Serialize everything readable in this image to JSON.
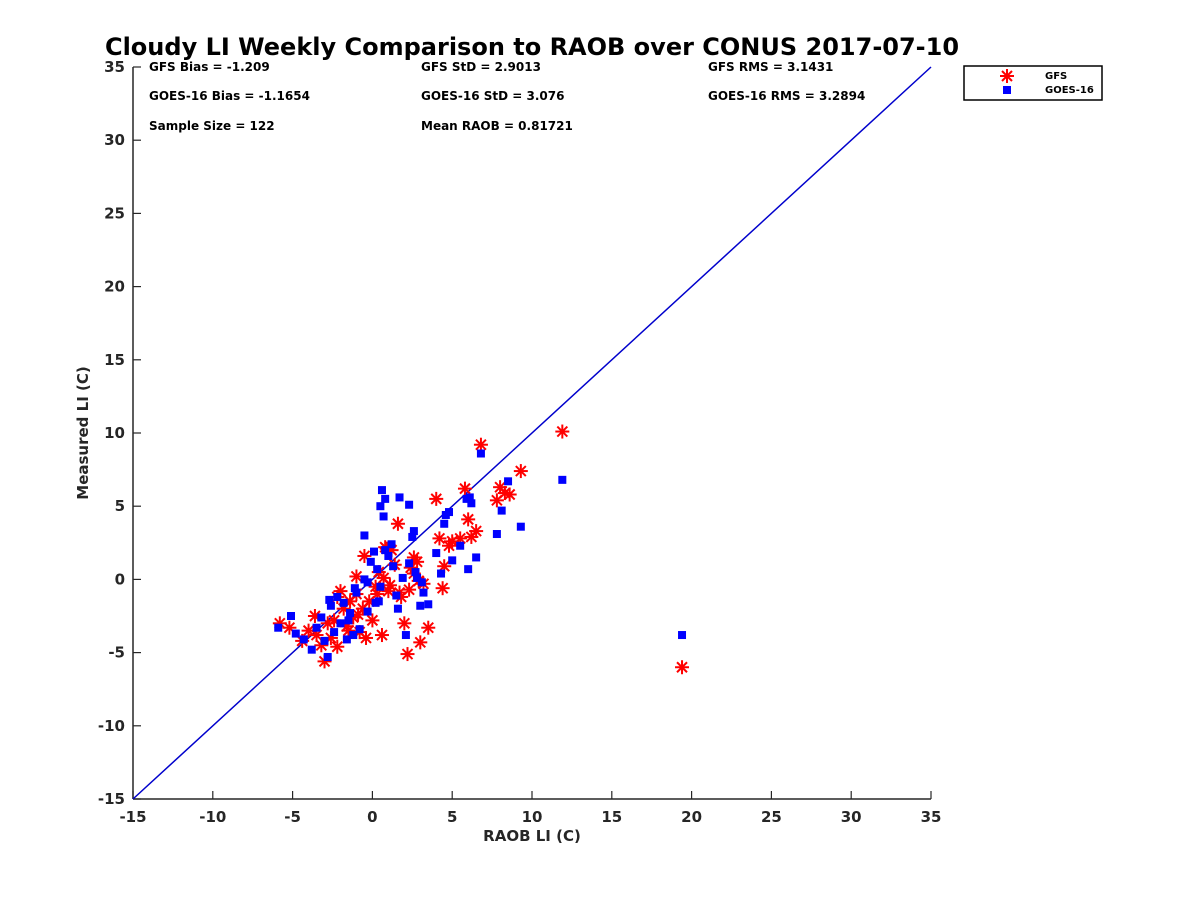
{
  "chart_data": {
    "type": "scatter",
    "title": "Cloudy LI Weekly Comparison to RAOB over CONUS 2017-07-10",
    "xlabel": "RAOB LI (C)",
    "ylabel": "Measured LI (C)",
    "xlim": [
      -15,
      35
    ],
    "ylim": [
      -15,
      35
    ],
    "xticks": [
      "-15",
      "-10",
      "-5",
      "0",
      "5",
      "10",
      "15",
      "20",
      "25",
      "30",
      "35"
    ],
    "yticks": [
      "35",
      "30",
      "25",
      "20",
      "15",
      "10",
      "5",
      "0",
      "-5",
      "-10",
      "-15"
    ],
    "grid": false,
    "legend_position": "outside top-right",
    "reference_line": {
      "from": [
        -15,
        -15
      ],
      "to": [
        35,
        35
      ],
      "color": "#0000cc"
    },
    "stats": {
      "gfs_bias": "GFS Bias = -1.209",
      "goes_bias": "GOES-16 Bias = -1.1654",
      "sample_size": "Sample Size = 122",
      "gfs_std": "GFS StD = 2.9013",
      "goes_std": "GOES-16 StD = 3.076",
      "mean_raob": "Mean RAOB = 0.81721",
      "gfs_rms": "GFS RMS = 3.1431",
      "goes_rms": "GOES-16 RMS = 3.2894"
    },
    "series": [
      {
        "name": "GFS",
        "marker": "asterisk",
        "color": "#ff0000",
        "x": [
          -5.8,
          -5.2,
          -4.4,
          -4.0,
          -3.6,
          -3.2,
          -3.0,
          -2.8,
          -2.6,
          -2.4,
          -2.2,
          -2.0,
          -1.8,
          -1.6,
          -1.4,
          -1.2,
          -1.0,
          -0.8,
          -0.6,
          -0.4,
          -0.2,
          0.0,
          0.2,
          0.4,
          0.6,
          0.8,
          1.0,
          1.2,
          1.4,
          1.6,
          1.8,
          2.0,
          2.2,
          2.4,
          2.6,
          2.8,
          3.0,
          3.2,
          3.5,
          4.0,
          4.2,
          4.4,
          4.5,
          4.8,
          5.0,
          5.5,
          5.8,
          6.0,
          6.2,
          6.5,
          6.8,
          7.8,
          8.0,
          8.3,
          8.6,
          9.3,
          11.9,
          19.4,
          -1.0,
          -0.5,
          0.7,
          1.7,
          2.3,
          2.9,
          -2.2,
          -3.5,
          0.3,
          1.1,
          -1.5,
          0.9,
          2.6,
          -0.9
        ],
        "y": [
          -3.0,
          -3.3,
          -4.2,
          -3.5,
          -2.5,
          -4.5,
          -5.6,
          -3.0,
          -4.0,
          -2.8,
          -4.6,
          -0.8,
          -2.0,
          -3.2,
          -1.5,
          -2.6,
          -1.0,
          -3.6,
          -2.0,
          -4.0,
          -1.5,
          -2.8,
          -0.5,
          0.5,
          -3.8,
          2.2,
          -0.8,
          2.0,
          1.0,
          3.8,
          -1.2,
          -3.0,
          -5.1,
          0.8,
          1.5,
          1.2,
          -4.3,
          -0.3,
          -3.3,
          5.5,
          2.8,
          -0.6,
          0.9,
          2.3,
          2.6,
          2.8,
          6.2,
          4.1,
          2.9,
          3.3,
          9.2,
          5.4,
          6.3,
          5.9,
          5.8,
          7.4,
          10.1,
          -6.0,
          0.2,
          1.6,
          0.1,
          -0.9,
          -0.7,
          -0.1,
          -1.2,
          -3.8,
          -1.0,
          -0.4,
          -3.5,
          2.1,
          0.4,
          -2.4
        ]
      },
      {
        "name": "GOES-16",
        "marker": "square",
        "color": "#0000ff",
        "x": [
          -5.9,
          -5.1,
          -4.8,
          -4.3,
          -3.8,
          -3.5,
          -3.2,
          -3.0,
          -2.8,
          -2.6,
          -2.4,
          -2.2,
          -2.0,
          -1.8,
          -1.6,
          -1.4,
          -1.2,
          -1.0,
          -0.8,
          -0.5,
          -0.3,
          -0.1,
          0.1,
          0.3,
          0.5,
          0.6,
          0.7,
          0.8,
          1.0,
          1.2,
          1.5,
          1.7,
          1.9,
          2.1,
          2.3,
          2.5,
          2.7,
          3.0,
          3.2,
          3.5,
          4.0,
          4.3,
          4.5,
          4.8,
          5.0,
          5.5,
          5.9,
          6.0,
          6.2,
          6.5,
          6.8,
          7.8,
          8.1,
          8.5,
          9.3,
          11.9,
          19.4,
          0.5,
          1.6,
          2.3,
          2.6,
          0.4,
          -0.5,
          -1.5,
          -2.7,
          0.2,
          1.3,
          2.8,
          -1.1,
          0.8,
          4.6,
          6.1,
          3.1,
          -0.3
        ],
        "y": [
          -3.3,
          -2.5,
          -3.7,
          -4.1,
          -4.8,
          -3.3,
          -2.6,
          -4.2,
          -5.3,
          -1.8,
          -3.6,
          -1.2,
          -3.0,
          -1.6,
          -4.1,
          -2.3,
          -3.8,
          -0.9,
          -3.4,
          3.0,
          -0.2,
          1.2,
          1.9,
          0.7,
          5.0,
          6.1,
          4.3,
          5.5,
          1.6,
          2.4,
          -1.1,
          5.6,
          0.1,
          -3.8,
          5.1,
          2.9,
          0.5,
          -1.8,
          -0.9,
          -1.7,
          1.8,
          0.4,
          3.8,
          4.6,
          1.3,
          2.3,
          5.5,
          0.7,
          5.2,
          1.5,
          8.6,
          3.1,
          4.7,
          6.7,
          3.6,
          6.8,
          -3.8,
          -0.5,
          -2.0,
          1.1,
          3.3,
          -1.5,
          0.0,
          -2.8,
          -1.4,
          -1.6,
          0.9,
          0.1,
          -0.6,
          2.0,
          4.4,
          5.6,
          -0.2,
          -2.2
        ]
      }
    ]
  }
}
